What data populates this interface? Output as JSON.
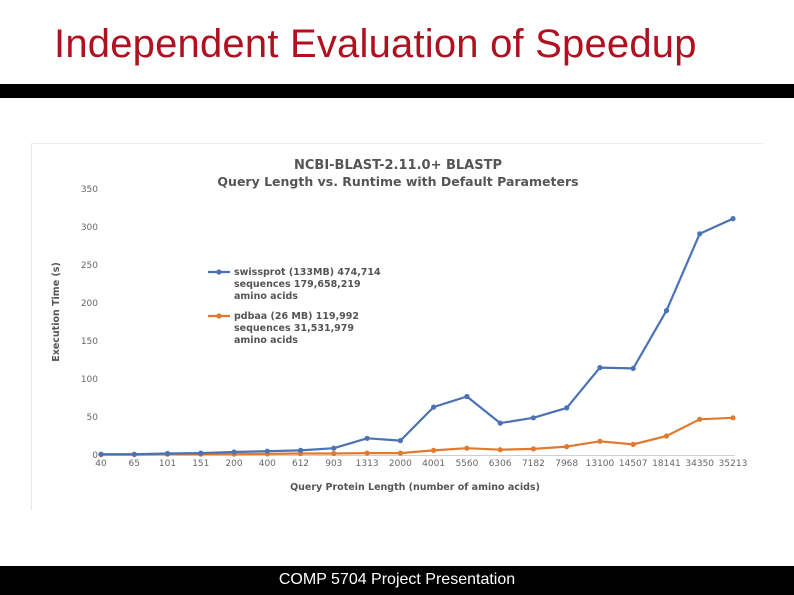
{
  "slide": {
    "title": "Independent Evaluation of Speedup",
    "footer": "COMP 5704 Project Presentation"
  },
  "colors": {
    "title": "#b01020",
    "series_blue": "#4a72b5",
    "series_orange": "#e07a2e"
  },
  "chart_data": {
    "type": "line",
    "title": "NCBI-BLAST-2.11.0+ BLASTP",
    "subtitle": "Query Length vs. Runtime with Default Parameters",
    "xlabel": "Query Protein Length (number of amino acids)",
    "ylabel": "Execution Time (s)",
    "ylim": [
      0,
      350
    ],
    "yticks": [
      "0",
      "50",
      "100",
      "150",
      "200",
      "250",
      "300",
      "350"
    ],
    "grid": false,
    "legend_position": "top-left",
    "categories": [
      "40",
      "65",
      "101",
      "151",
      "200",
      "400",
      "612",
      "903",
      "1313",
      "2000",
      "4001",
      "5560",
      "6306",
      "7182",
      "7968",
      "13100",
      "14507",
      "18141",
      "34350",
      "35213"
    ],
    "series": [
      {
        "name": "swissprot (133MB) 474,714 sequences 179,658,219 amino acids",
        "legend_lines": [
          "swissprot (133MB) 474,714",
          "sequences 179,658,219",
          "amino acids"
        ],
        "color": "#4a72b5",
        "values": [
          1,
          1,
          2,
          2.5,
          4,
          5,
          6,
          9,
          22,
          19,
          63,
          77,
          42,
          49,
          62,
          115,
          114,
          190,
          291,
          311
        ]
      },
      {
        "name": "pdbaa (26 MB) 119,992 sequences 31,531,979 amino acids",
        "legend_lines": [
          "pdbaa (26 MB) 119,992",
          "sequences 31,531,979",
          "amino acids"
        ],
        "color": "#e07a2e",
        "values": [
          0.5,
          0.5,
          1,
          1,
          1,
          1.5,
          2,
          2,
          2.5,
          2.5,
          6,
          9,
          7,
          8,
          11,
          18,
          14,
          25,
          47,
          49
        ]
      }
    ]
  }
}
